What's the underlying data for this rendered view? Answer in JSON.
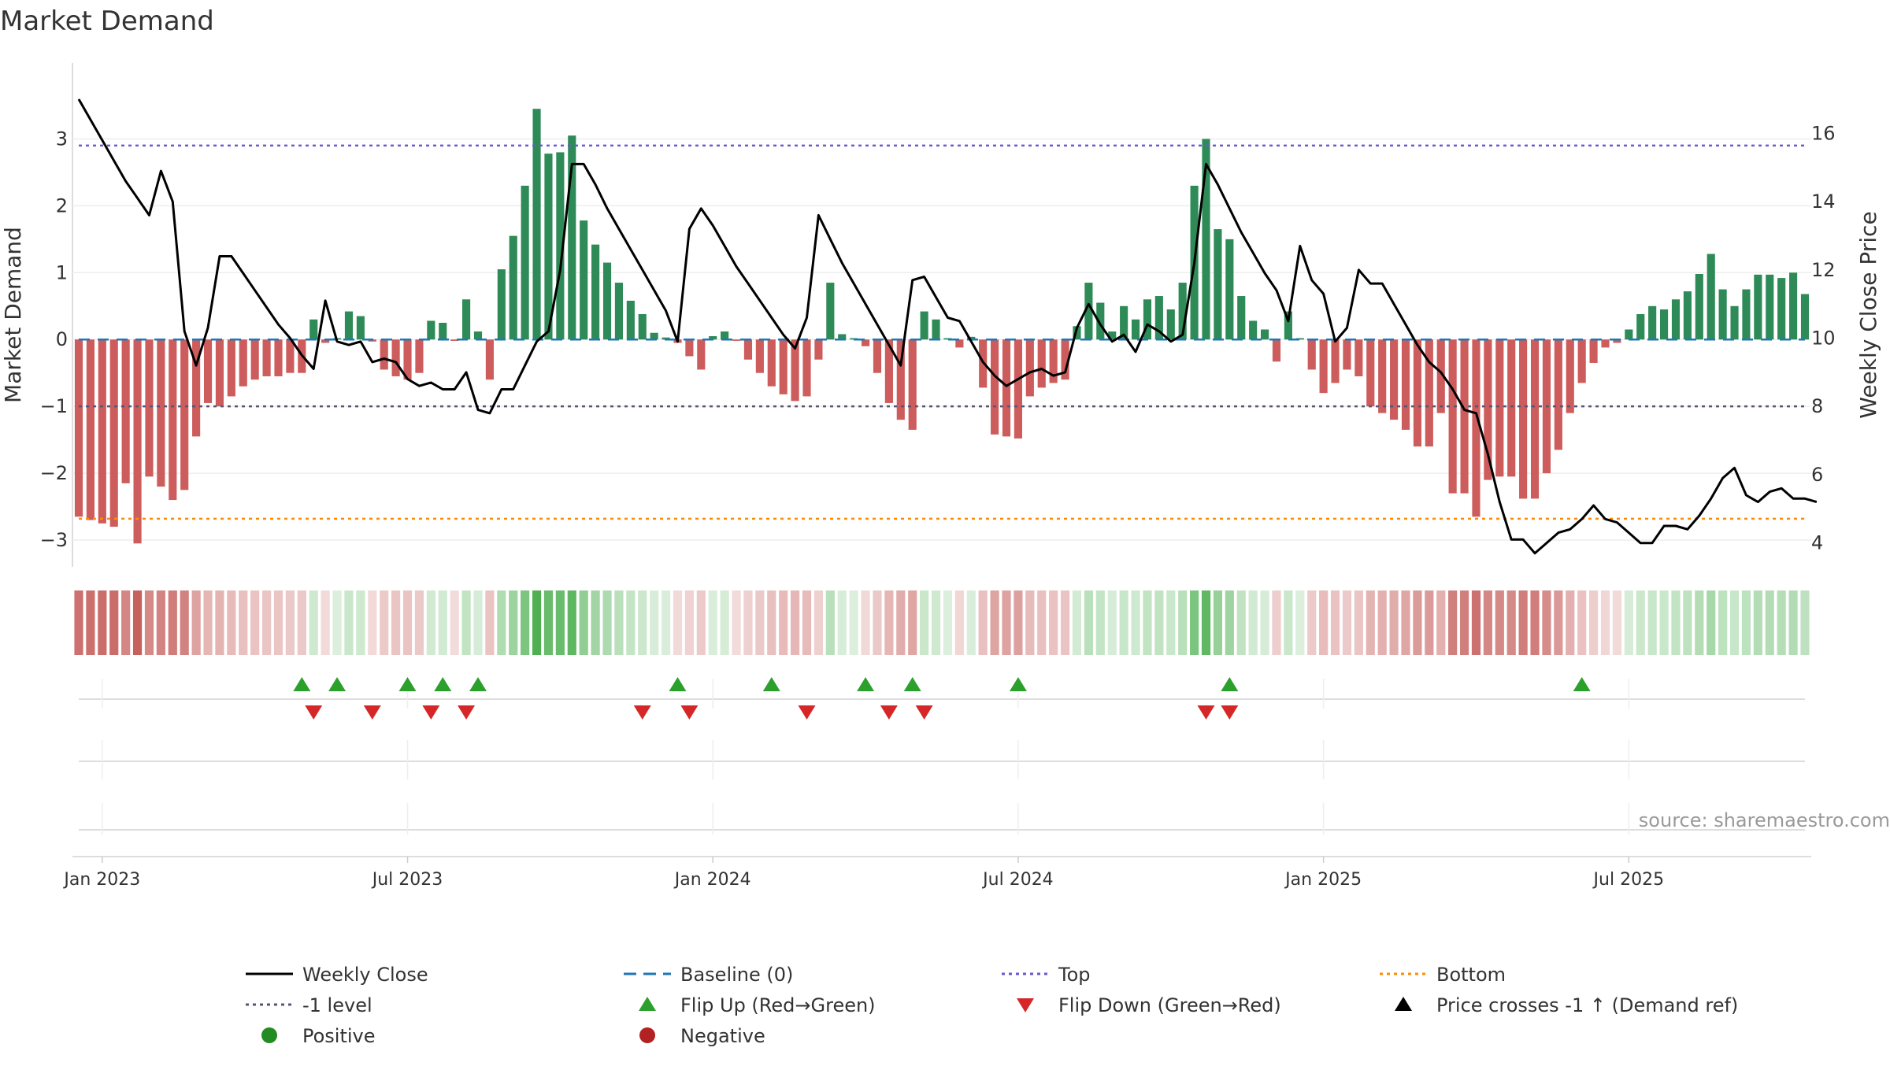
{
  "chart_data": {
    "type": "bar",
    "title": "Market Demand",
    "ylabel_left": "Market Demand",
    "ylabel_right": "Weekly Close Price",
    "ylim_left": [
      -3.4,
      3.9
    ],
    "ylim_right": [
      3.3,
      17.6
    ],
    "yticks_left": [
      3,
      2,
      1,
      0,
      -1,
      -2,
      -3
    ],
    "ytick_labels_left": [
      "3",
      "2",
      "1",
      "0",
      "−1",
      "−2",
      "−3"
    ],
    "yticks_right": [
      16,
      14,
      12,
      10,
      8,
      6,
      4
    ],
    "ytick_labels_right": [
      "16",
      "14",
      "12",
      "10",
      "8",
      "6",
      "4"
    ],
    "x_ticks": [
      "Jan 2023",
      "Jul 2023",
      "Jan 2024",
      "Jul 2024",
      "Jan 2025",
      "Jul 2025"
    ],
    "x_tick_weeks": [
      2,
      28,
      54,
      80,
      106,
      132
    ],
    "levels": {
      "top": 2.9,
      "minus_one": -1,
      "bottom": -2.68,
      "baseline": 0
    },
    "demand": [
      -2.65,
      -2.7,
      -2.75,
      -2.8,
      -2.15,
      -3.05,
      -2.05,
      -2.2,
      -2.4,
      -2.25,
      -1.45,
      -0.95,
      -1.0,
      -0.85,
      -0.7,
      -0.6,
      -0.55,
      -0.55,
      -0.5,
      -0.5,
      0.3,
      -0.05,
      0.02,
      0.42,
      0.35,
      -0.03,
      -0.45,
      -0.55,
      -0.6,
      -0.5,
      0.28,
      0.25,
      -0.02,
      0.6,
      0.12,
      -0.6,
      1.05,
      1.55,
      2.3,
      3.45,
      2.78,
      2.8,
      3.05,
      1.78,
      1.42,
      1.15,
      0.85,
      0.58,
      0.38,
      0.1,
      0.03,
      -0.05,
      -0.25,
      -0.45,
      0.05,
      0.12,
      -0.02,
      -0.3,
      -0.5,
      -0.7,
      -0.82,
      -0.92,
      -0.85,
      -0.3,
      0.85,
      0.08,
      0.02,
      -0.1,
      -0.5,
      -0.95,
      -1.2,
      -1.35,
      0.42,
      0.3,
      0.02,
      -0.12,
      0.04,
      -0.72,
      -1.42,
      -1.45,
      -1.48,
      -0.85,
      -0.72,
      -0.65,
      -0.6,
      0.2,
      0.85,
      0.55,
      0.12,
      0.5,
      0.3,
      0.6,
      0.65,
      0.45,
      0.85,
      2.3,
      3.0,
      1.65,
      1.5,
      0.65,
      0.28,
      0.15,
      -0.33,
      0.42,
      0.02,
      -0.45,
      -0.8,
      -0.65,
      -0.45,
      -0.55,
      -1.0,
      -1.1,
      -1.2,
      -1.35,
      -1.6,
      -1.6,
      -1.1,
      -2.3,
      -2.3,
      -2.65,
      -2.1,
      -2.05,
      -2.05,
      -2.38,
      -2.38,
      -2.0,
      -1.65,
      -1.1,
      -0.65,
      -0.35,
      -0.12,
      -0.05,
      0.15,
      0.38,
      0.5,
      0.45,
      0.6,
      0.72,
      0.98,
      1.28,
      0.75,
      0.5,
      0.75,
      0.97,
      0.97,
      0.92,
      1.0,
      0.68
    ],
    "weekly_close": [
      17.0,
      16.4,
      15.8,
      15.2,
      14.6,
      14.1,
      13.6,
      14.9,
      14.0,
      10.2,
      9.2,
      10.3,
      12.4,
      12.4,
      11.9,
      11.4,
      10.9,
      10.4,
      10.0,
      9.5,
      9.1,
      11.1,
      9.9,
      9.8,
      9.9,
      9.3,
      9.4,
      9.3,
      8.8,
      8.6,
      8.7,
      8.5,
      8.5,
      9.0,
      7.9,
      7.8,
      8.5,
      8.5,
      9.2,
      9.9,
      10.2,
      12.0,
      15.1,
      15.1,
      14.5,
      13.8,
      13.2,
      12.6,
      12.0,
      11.4,
      10.8,
      9.9,
      13.2,
      13.8,
      13.3,
      12.7,
      12.1,
      11.6,
      11.1,
      10.6,
      10.1,
      9.7,
      10.6,
      13.6,
      12.9,
      12.2,
      11.6,
      11.0,
      10.4,
      9.8,
      9.2,
      11.7,
      11.8,
      11.2,
      10.6,
      10.5,
      9.9,
      9.3,
      8.9,
      8.6,
      8.8,
      9.0,
      9.1,
      8.9,
      9.0,
      10.3,
      11.0,
      10.4,
      9.9,
      10.1,
      9.6,
      10.4,
      10.2,
      9.9,
      10.1,
      12.2,
      15.1,
      14.5,
      13.8,
      13.1,
      12.5,
      11.9,
      11.4,
      10.5,
      12.7,
      11.7,
      11.3,
      9.9,
      10.3,
      12.0,
      11.6,
      11.6,
      11.0,
      10.4,
      9.8,
      9.3,
      9.0,
      8.5,
      7.9,
      7.8,
      6.6,
      5.2,
      4.1,
      4.1,
      3.7,
      4.0,
      4.3,
      4.4,
      4.7,
      5.1,
      4.7,
      4.6,
      4.3,
      4.0,
      4.0,
      4.5,
      4.5,
      4.4,
      4.8,
      5.3,
      5.9,
      6.2,
      5.4,
      5.2,
      5.5,
      5.6,
      5.3,
      5.3,
      5.2
    ],
    "strip_values_note": "color strip uses demand values",
    "flip_up_weeks": [
      19,
      22,
      28,
      31,
      34,
      51,
      59,
      67,
      71,
      80,
      98,
      128
    ],
    "flip_down_weeks": [
      20,
      25,
      30,
      33,
      48,
      52,
      62,
      69,
      72,
      96,
      98
    ],
    "annotation": "source: sharemaestro.com",
    "colors": {
      "positive_bar": "#2e8b57",
      "negative_bar": "#cd5c5c",
      "price_line": "#000000",
      "baseline": "#1f77b4",
      "top": "#6a5acd",
      "minus_one": "#555577",
      "bottom": "#ff8c00",
      "flip_up": "#2ca02c",
      "flip_down": "#d62728",
      "positive_dot": "#228b22",
      "negative_dot": "#b22222",
      "cross_marker": "#000000"
    },
    "legend": [
      {
        "label": "Weekly Close",
        "kind": "line-solid",
        "color": "#000000"
      },
      {
        "label": "Baseline (0)",
        "kind": "line-dash",
        "color": "#1f77b4"
      },
      {
        "label": "Top",
        "kind": "line-dot",
        "color": "#6a5acd"
      },
      {
        "label": "Bottom",
        "kind": "line-dot",
        "color": "#ff8c00"
      },
      {
        "label": "-1 level",
        "kind": "line-dot",
        "color": "#555577"
      },
      {
        "label": "Flip Up (Red→Green)",
        "kind": "tri-up",
        "color": "#2ca02c"
      },
      {
        "label": "Flip Down (Green→Red)",
        "kind": "tri-down",
        "color": "#d62728"
      },
      {
        "label": "Price crosses -1 ↑ (Demand ref)",
        "kind": "tri-up",
        "color": "#000000"
      },
      {
        "label": "Positive",
        "kind": "dot",
        "color": "#228b22"
      },
      {
        "label": "Negative",
        "kind": "dot",
        "color": "#b22222"
      }
    ]
  }
}
